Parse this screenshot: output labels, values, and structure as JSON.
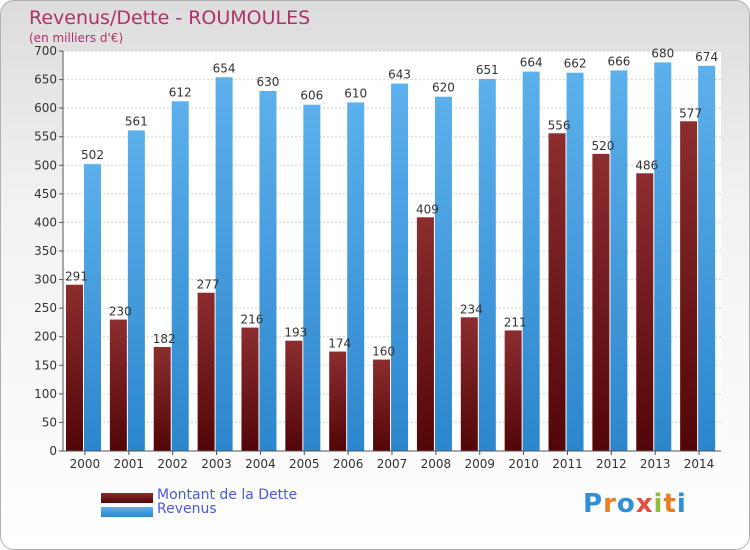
{
  "header": {
    "title": "Revenus/Dette - ROUMOULES",
    "subtitle": "(en milliers d'€)"
  },
  "legend": {
    "debt_label": "Montant de la Dette",
    "revenue_label": "Revenus"
  },
  "logo": {
    "text": "Proxiti"
  },
  "colors": {
    "debt": "#7a2224",
    "revenue": "#4aa3e6",
    "title": "#b0306a",
    "legend_text": "#4a5adb"
  },
  "chart_data": {
    "type": "bar",
    "title": "Revenus/Dette - ROUMOULES",
    "subtitle": "(en milliers d'€)",
    "xlabel": "",
    "ylabel": "",
    "ylim": [
      0,
      700
    ],
    "yticks": [
      0,
      50,
      100,
      150,
      200,
      250,
      300,
      350,
      400,
      450,
      500,
      550,
      600,
      650,
      700
    ],
    "grid": true,
    "legend_position": "bottom-left",
    "categories": [
      "2000",
      "2001",
      "2002",
      "2003",
      "2004",
      "2005",
      "2006",
      "2007",
      "2008",
      "2009",
      "2010",
      "2011",
      "2012",
      "2013",
      "2014"
    ],
    "series": [
      {
        "name": "Montant de la Dette",
        "values": [
          291,
          230,
          182,
          277,
          216,
          193,
          174,
          160,
          409,
          234,
          211,
          556,
          520,
          486,
          577
        ]
      },
      {
        "name": "Revenus",
        "values": [
          502,
          561,
          612,
          654,
          630,
          606,
          610,
          643,
          620,
          651,
          664,
          662,
          666,
          680,
          674
        ]
      }
    ]
  }
}
